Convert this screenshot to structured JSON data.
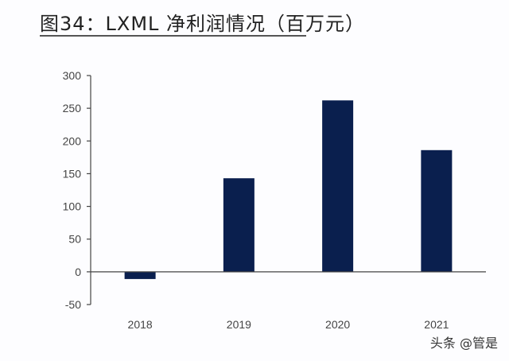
{
  "chart_data": {
    "type": "bar",
    "title": "图34：LXML 净利润情况（百万元）",
    "xlabel": "",
    "ylabel": "",
    "categories": [
      "2018",
      "2019",
      "2020",
      "2021"
    ],
    "values": [
      -11,
      143,
      262,
      186
    ],
    "ylim": [
      -50,
      300
    ],
    "yticks": [
      300,
      250,
      200,
      150,
      100,
      50,
      0,
      -50
    ],
    "ytick_labels": [
      "300",
      "250",
      "200",
      "150",
      "100",
      "50",
      "0",
      "-50"
    ],
    "grid": false,
    "legend": "none",
    "bar_color": "#0a1f4e"
  },
  "watermark": "头条 @管是"
}
